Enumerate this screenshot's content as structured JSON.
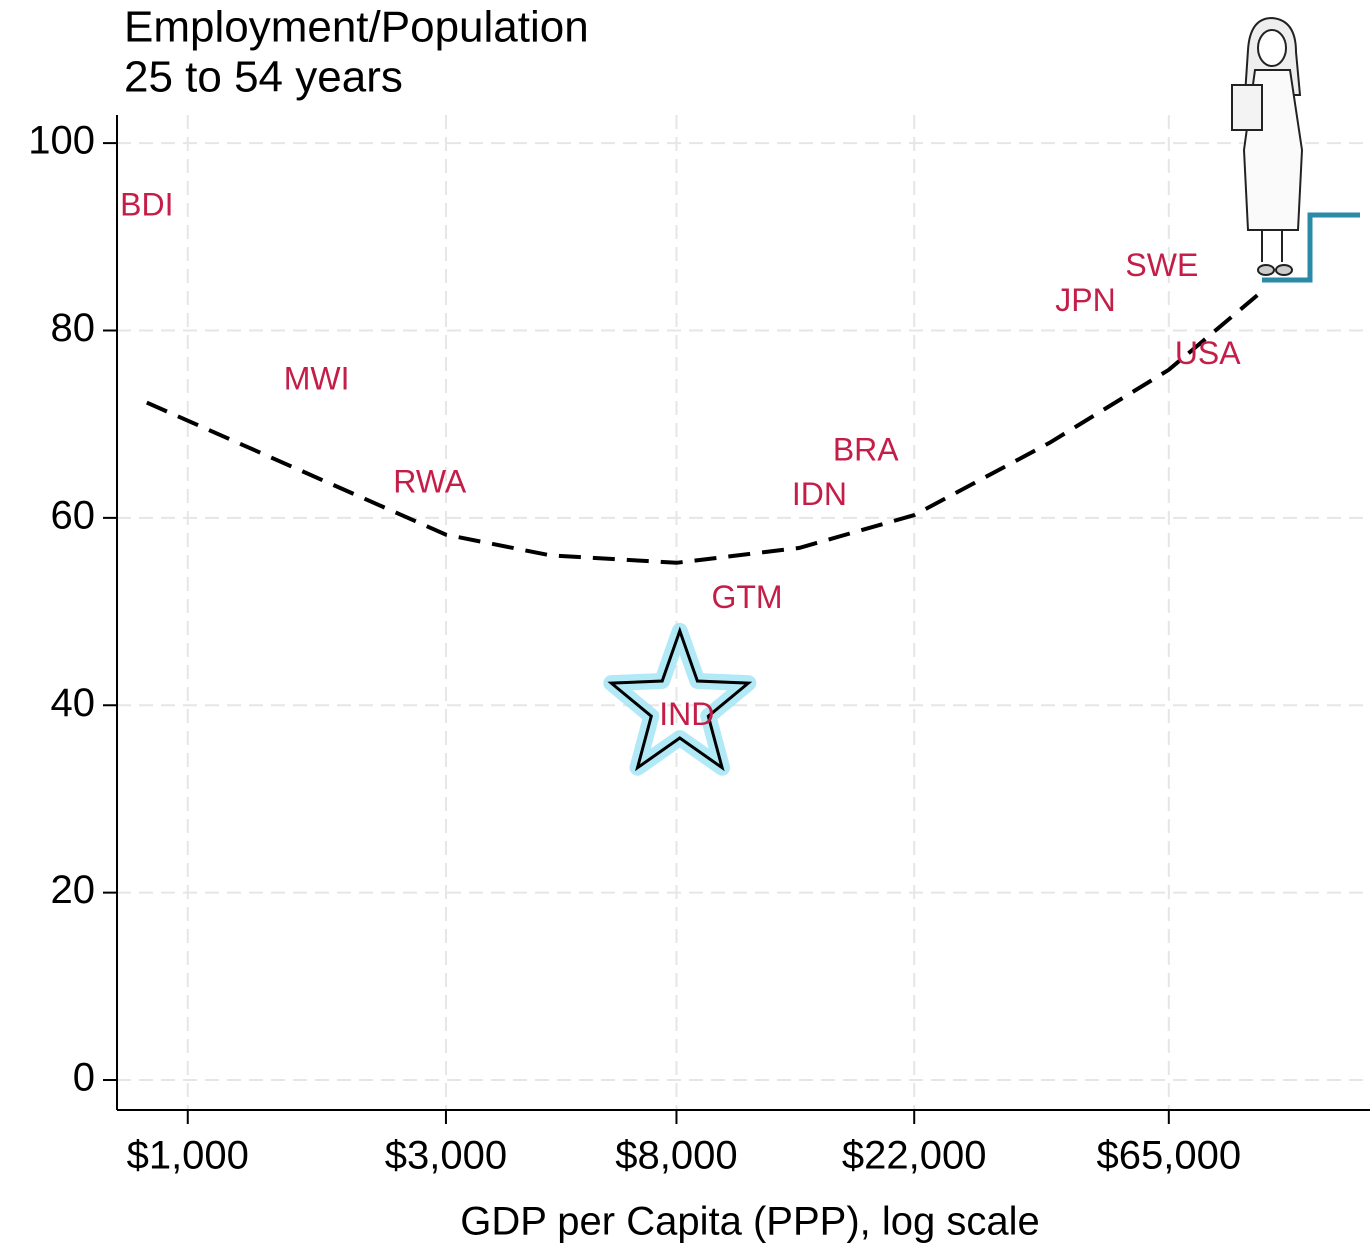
{
  "chart_data": {
    "type": "scatter",
    "title": "Employment/Population",
    "subtitle": "25 to 54 years",
    "x_label": "GDP per Capita (PPP), log scale",
    "xscale": "log",
    "grid": true,
    "color": "#c41e48",
    "xlim": [
      740,
      153000
    ],
    "ylim": [
      -3.2,
      103
    ],
    "xticks": [
      {
        "value": 1000,
        "label": "$1,000"
      },
      {
        "value": 3000,
        "label": "$3,000"
      },
      {
        "value": 8000,
        "label": "$8,000"
      },
      {
        "value": 22000,
        "label": "$22,000"
      },
      {
        "value": 65000,
        "label": "$65,000"
      }
    ],
    "yticks": [
      0,
      20,
      40,
      60,
      80,
      100
    ],
    "labels": [
      "BDI",
      "MWI",
      "RWA",
      "IND",
      "GTM",
      "IDN",
      "BRA",
      "JPN",
      "SWE",
      "USA"
    ],
    "x": [
      840,
      1730,
      2800,
      8360,
      10800,
      14700,
      17900,
      45600,
      63100,
      76700
    ],
    "values": [
      93.2,
      74.6,
      63.6,
      38.8,
      51.3,
      62.3,
      67.0,
      83.0,
      86.7,
      77.3
    ],
    "highlight": "IND",
    "fit": {
      "x": [
        840,
        1610,
        3000,
        4670,
        8000,
        13500,
        22000,
        39100,
        65000,
        95800
      ],
      "values": [
        72.3,
        65.1,
        58.2,
        56.0,
        55.2,
        56.8,
        60.3,
        68.0,
        75.8,
        84.0
      ]
    }
  }
}
